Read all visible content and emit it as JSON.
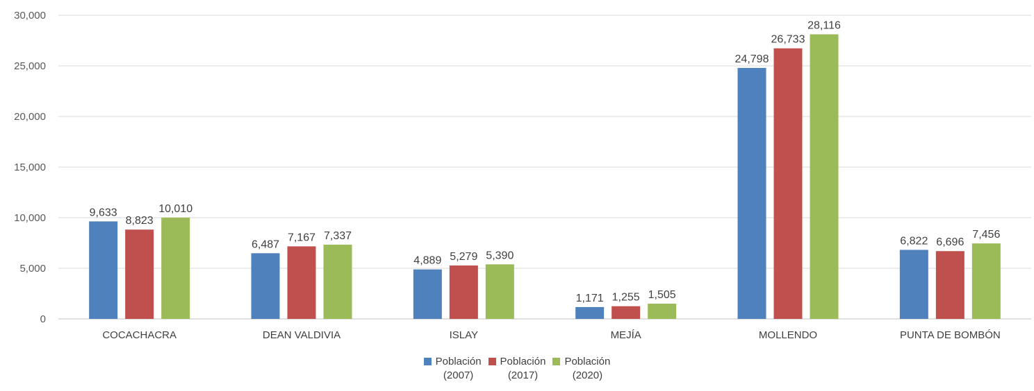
{
  "chart_data": {
    "type": "bar",
    "categories": [
      "COCACHACRA",
      "DEAN VALDIVIA",
      "ISLAY",
      "MEJÍA",
      "MOLLENDO",
      "PUNTA DE BOMBÓN"
    ],
    "series": [
      {
        "name_line1": "Población",
        "name_line2": "(2007)",
        "color": "#4F81BD",
        "values": [
          9633,
          6487,
          4889,
          1171,
          24798,
          6822
        ],
        "labels": [
          "9,633",
          "6,487",
          "4,889",
          "1,171",
          "24,798",
          "6,822"
        ]
      },
      {
        "name_line1": "Población",
        "name_line2": "(2017)",
        "color": "#C0504D",
        "values": [
          8823,
          7167,
          5279,
          1255,
          26733,
          6696
        ],
        "labels": [
          "8,823",
          "7,167",
          "5,279",
          "1,255",
          "26,733",
          "6,696"
        ]
      },
      {
        "name_line1": "Población",
        "name_line2": "(2020)",
        "color": "#9BBB59",
        "values": [
          10010,
          7337,
          5390,
          1505,
          28116,
          7456
        ],
        "labels": [
          "10,010",
          "7,337",
          "5,390",
          "1,505",
          "28,116",
          "7,456"
        ]
      }
    ],
    "ylim": [
      0,
      30000
    ],
    "yticks": [
      "0",
      "5,000",
      "10,000",
      "15,000",
      "20,000",
      "25,000",
      "30,000"
    ],
    "grid": true,
    "legend_position": "bottom"
  }
}
